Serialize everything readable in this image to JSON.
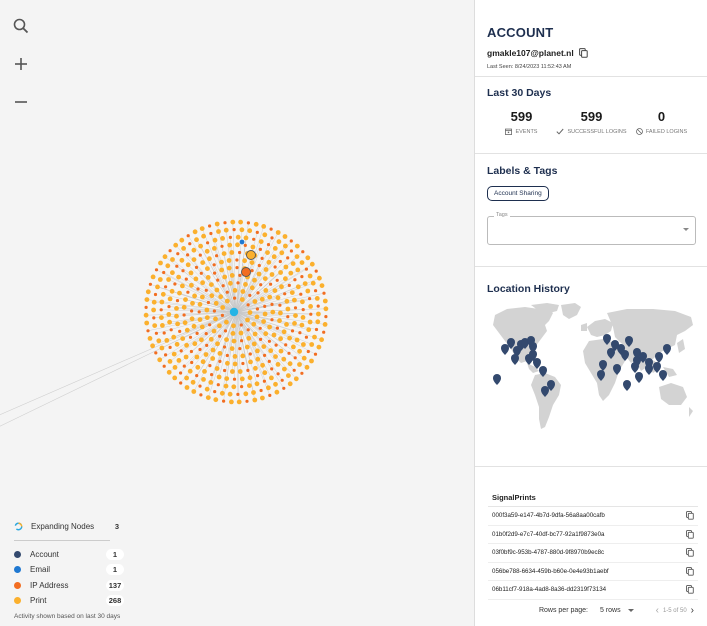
{
  "colors": {
    "account": "#33496e",
    "email": "#1f78d1",
    "ip": "#f26d21",
    "print": "#fbb02d",
    "center": "#24b4e5",
    "heading": "#1e2f4f"
  },
  "canvas_tools": [
    {
      "name": "search-icon"
    },
    {
      "name": "zoom-in-icon"
    },
    {
      "name": "zoom-out-icon"
    }
  ],
  "legend": {
    "expanding": {
      "label": "Expanding Nodes",
      "count": "3"
    },
    "items": [
      {
        "label": "Account",
        "count": "1",
        "color": "#33496e"
      },
      {
        "label": "Email",
        "count": "1",
        "color": "#1f78d1"
      },
      {
        "label": "IP Address",
        "count": "137",
        "color": "#f26d21"
      },
      {
        "label": "Print",
        "count": "268",
        "color": "#fbb02d"
      }
    ],
    "note": "Activity shown based on last 30 days"
  },
  "account": {
    "title": "ACCOUNT",
    "email": "gmakle107@planet.nl",
    "last_seen": "Last Seen: 8/24/2023 11:52:43 AM"
  },
  "last30": {
    "title": "Last 30 Days",
    "stats": [
      {
        "value": "599",
        "label": "EVENTS",
        "icon": "calendar-icon"
      },
      {
        "value": "599",
        "label": "SUCCESSFUL LOGINS",
        "icon": "check-icon"
      },
      {
        "value": "0",
        "label": "FAILED LOGINS",
        "icon": "blocked-icon"
      }
    ]
  },
  "labels_tags": {
    "title": "Labels & Tags",
    "chip": "Account Sharing",
    "tags_label": "Tags",
    "tags_value": ""
  },
  "location": {
    "title": "Location History",
    "pin_icon": "map-pin-icon"
  },
  "signalprints": {
    "title": "SignalPrints",
    "rows": [
      "000f3a59-e147-4b7d-9dfa-56a8aa00cafb",
      "01b0f2d9-e7c7-40df-bc77-92a1f9873e0a",
      "03f0bf9c-953b-4787-880d-9f8970b9ec8c",
      "056be788-6634-459b-b60e-0e4e93b1aebf",
      "06b11cf7-918a-4ad8-8a36-dd2319f73134"
    ],
    "rows_per_page_label": "Rows per page:",
    "rows_per_page_value": "5 rows",
    "range": "1-5 of 50"
  }
}
